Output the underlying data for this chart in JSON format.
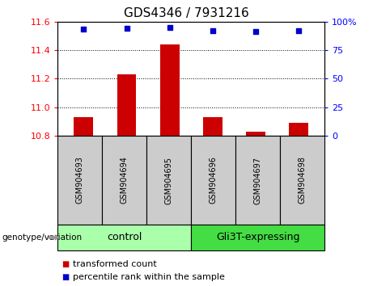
{
  "title": "GDS4346 / 7931216",
  "samples": [
    "GSM904693",
    "GSM904694",
    "GSM904695",
    "GSM904696",
    "GSM904697",
    "GSM904698"
  ],
  "bar_values": [
    10.93,
    11.23,
    11.44,
    10.93,
    10.83,
    10.89
  ],
  "percentile_values": [
    93,
    94,
    95,
    92,
    91,
    92
  ],
  "ylim_left": [
    10.8,
    11.6
  ],
  "ylim_right": [
    0,
    100
  ],
  "yticks_left": [
    10.8,
    11.0,
    11.2,
    11.4,
    11.6
  ],
  "yticks_right": [
    0,
    25,
    50,
    75,
    100
  ],
  "bar_color": "#cc0000",
  "dot_color": "#0000cc",
  "label_box_color": "#cccccc",
  "control_color": "#aaffaa",
  "expressing_color": "#44dd44",
  "groups": [
    {
      "label": "control",
      "indices": [
        0,
        1,
        2
      ],
      "color": "#aaffaa"
    },
    {
      "label": "Gli3T-expressing",
      "indices": [
        3,
        4,
        5
      ],
      "color": "#44dd44"
    }
  ],
  "legend_bar_label": "transformed count",
  "legend_dot_label": "percentile rank within the sample",
  "genotype_label": "genotype/variation",
  "title_fontsize": 11,
  "tick_fontsize": 8,
  "sample_fontsize": 7,
  "group_fontsize": 9,
  "legend_fontsize": 8
}
